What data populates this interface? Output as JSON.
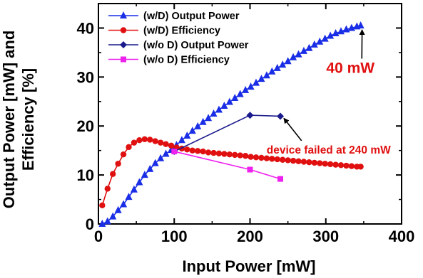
{
  "chart_data": {
    "type": "line",
    "xlabel": "Input Power [mW]",
    "ylabel": [
      "Output Power [mW] and",
      "Efficiency [%]"
    ],
    "xlim": [
      0,
      400
    ],
    "ylim": [
      0,
      45
    ],
    "xticks": [
      0,
      100,
      200,
      300,
      400
    ],
    "yticks": [
      0,
      10,
      20,
      30,
      40
    ],
    "grid": false,
    "legend_position": "top-left",
    "series": [
      {
        "name": "(w/D) Output Power",
        "color": "#1a2ee6",
        "marker": "triangle",
        "x": [
          5,
          12,
          19,
          26,
          33,
          40,
          47,
          54,
          61,
          68,
          75,
          82,
          89,
          96,
          103,
          110,
          117,
          124,
          131,
          138,
          145,
          152,
          159,
          166,
          173,
          180,
          187,
          194,
          201,
          208,
          215,
          222,
          229,
          236,
          243,
          250,
          257,
          264,
          271,
          278,
          285,
          292,
          299,
          306,
          313,
          320,
          327,
          334,
          341,
          346
        ],
        "y": [
          0,
          0.5,
          1.5,
          2.8,
          4,
          5.5,
          7,
          8.5,
          10,
          11.2,
          12.4,
          13.4,
          14.3,
          15.1,
          16.1,
          17.1,
          18,
          19,
          19.9,
          20.8,
          21.6,
          22.5,
          23.3,
          24.1,
          24.9,
          25.7,
          26.5,
          27.3,
          28,
          28.8,
          29.6,
          30.3,
          31.1,
          31.8,
          32.5,
          33.2,
          34,
          34.6,
          35.3,
          35.9,
          36.6,
          37.2,
          37.8,
          38.4,
          38.9,
          39.3,
          39.7,
          40,
          40.3,
          40.5
        ]
      },
      {
        "name": "(w/D) Efficiency",
        "color": "#e01010",
        "marker": "circle",
        "x": [
          5,
          12,
          19,
          26,
          33,
          40,
          47,
          54,
          61,
          68,
          75,
          82,
          89,
          96,
          103,
          110,
          117,
          124,
          131,
          138,
          145,
          152,
          159,
          166,
          173,
          180,
          187,
          194,
          201,
          208,
          215,
          222,
          229,
          236,
          243,
          250,
          257,
          264,
          271,
          278,
          285,
          292,
          299,
          306,
          313,
          320,
          327,
          334,
          341,
          346
        ],
        "y": [
          3.8,
          7.2,
          10.2,
          12.3,
          14.2,
          15.7,
          16.6,
          17.1,
          17.3,
          17.2,
          16.9,
          16.6,
          16.3,
          16,
          15.6,
          15.4,
          15.2,
          15,
          14.9,
          14.8,
          14.6,
          14.5,
          14.4,
          14.3,
          14.2,
          14.1,
          14,
          13.9,
          13.7,
          13.6,
          13.5,
          13.4,
          13.3,
          13.2,
          13.1,
          13,
          12.9,
          12.8,
          12.7,
          12.6,
          12.5,
          12.4,
          12.3,
          12.2,
          12.1,
          12,
          11.9,
          11.8,
          11.7,
          11.7
        ]
      },
      {
        "name": "(w/o D) Output Power",
        "color": "#1a1a8c",
        "marker": "diamond",
        "x": [
          100,
          200,
          240
        ],
        "y": [
          14.8,
          22.2,
          22
        ]
      },
      {
        "name": "(w/o D) Efficiency",
        "color": "#ee22ee",
        "marker": "square",
        "x": [
          100,
          200,
          240
        ],
        "y": [
          14.8,
          11.1,
          9.2
        ]
      }
    ],
    "annotations": [
      {
        "text": "40 mW",
        "x": 346,
        "y": 40.5,
        "label_at": [
          340,
          32.3
        ]
      },
      {
        "text": "device failed at 240 mW",
        "x": 240,
        "y": 22,
        "label_at": [
          268,
          17
        ]
      }
    ]
  }
}
